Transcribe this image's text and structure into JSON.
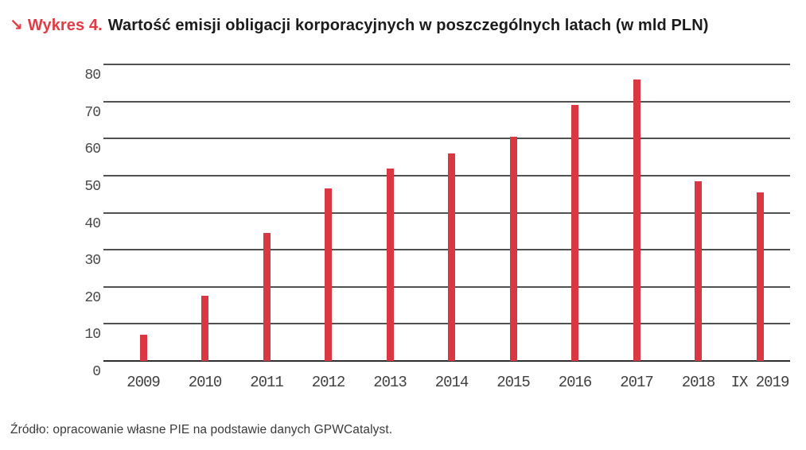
{
  "title": {
    "arrow": "↘",
    "label": "Wykres 4.",
    "text": "Wartość emisji obligacji korporacyjnych w poszczególnych latach (w mld PLN)"
  },
  "source": {
    "text": "Źródło: opracowanie własne PIE na podstawie danych GPWCatalyst."
  },
  "colors": {
    "bar": "#d93742",
    "accent_red": "#e23b45",
    "gridline": "#515151",
    "baseline": "#2e2e2e",
    "tick_text": "#4a4a4a",
    "title_text": "#1c1c1e"
  },
  "chart_data": {
    "type": "bar",
    "title": "Wartość emisji obligacji korporacyjnych w poszczególnych latach (w mld PLN)",
    "categories": [
      "2009",
      "2010",
      "2011",
      "2012",
      "2013",
      "2014",
      "2015",
      "2016",
      "2017",
      "2018",
      "IX 2019"
    ],
    "values": [
      7,
      17.5,
      34.5,
      46.5,
      52,
      56,
      60.5,
      69,
      76,
      48.5,
      45.5
    ],
    "xlabel": "",
    "ylabel": "",
    "ylim": [
      0,
      80
    ],
    "yticks": [
      0,
      10,
      20,
      30,
      40,
      50,
      60,
      70,
      80
    ],
    "grid": true,
    "legend": false,
    "bar_color": "#d93742",
    "unit": "mld PLN"
  }
}
